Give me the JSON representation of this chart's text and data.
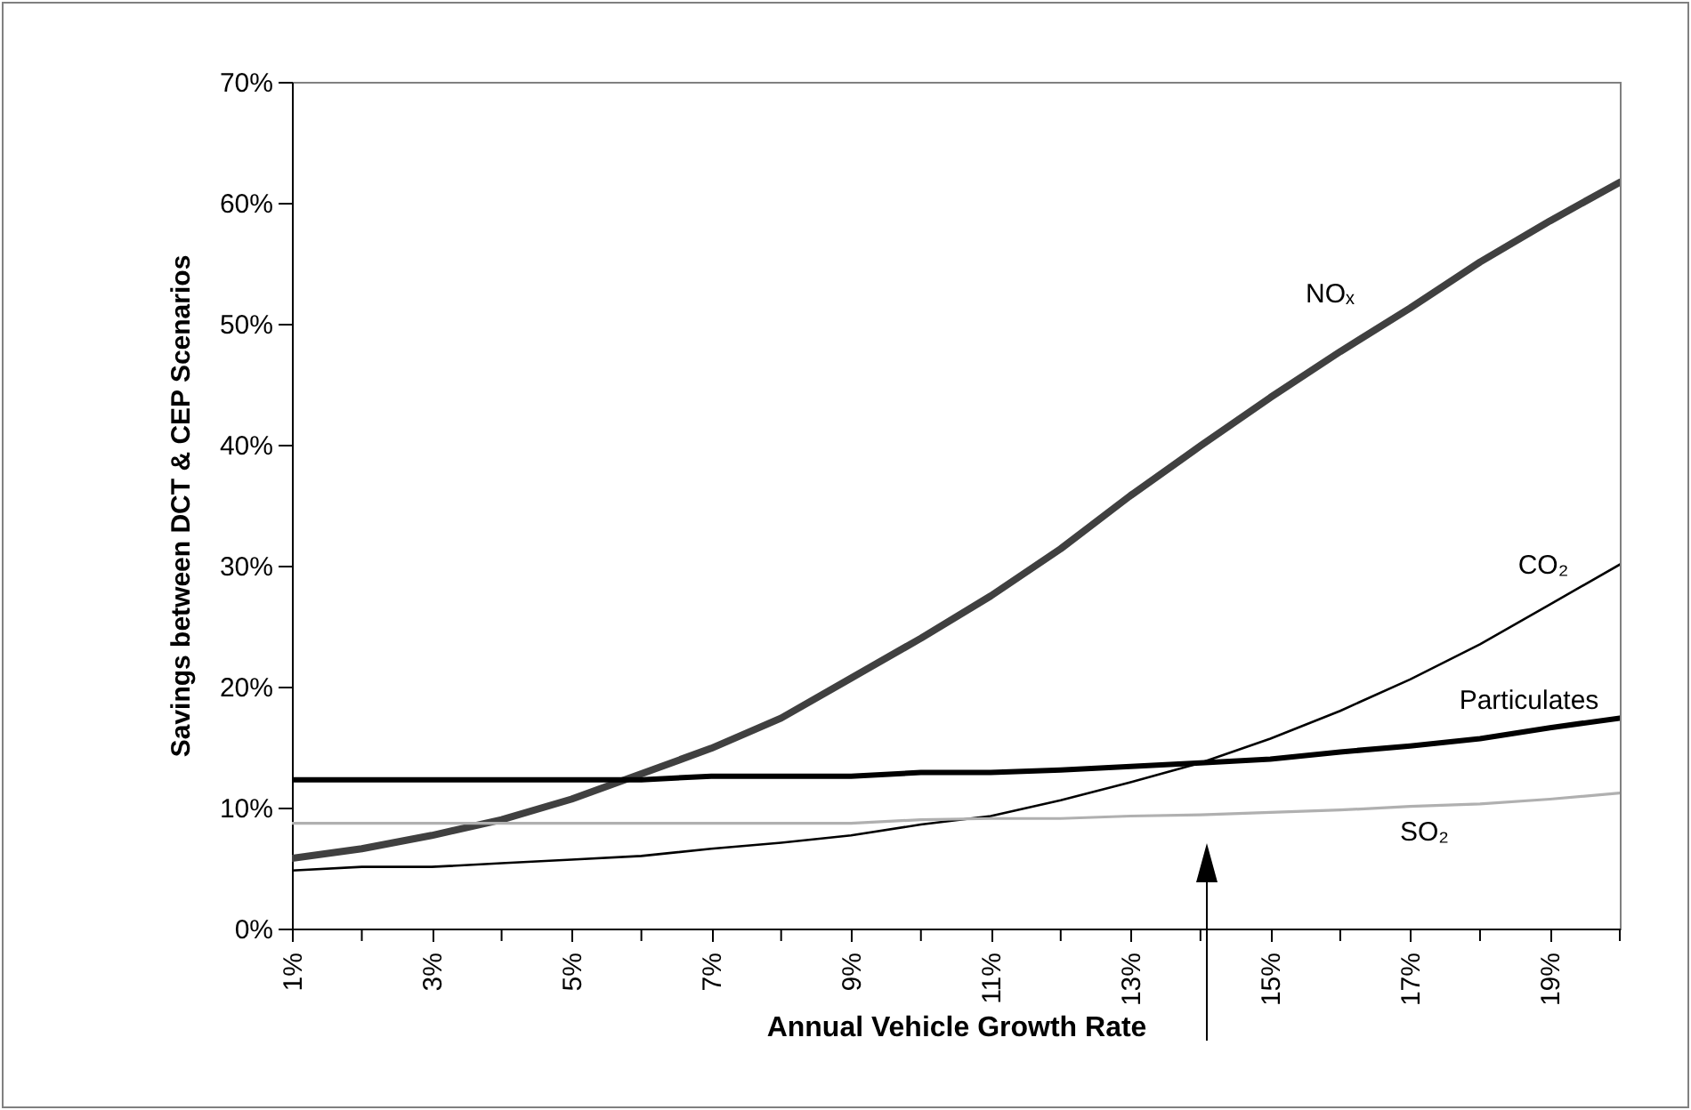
{
  "chart_data": {
    "type": "line",
    "xlabel": "Annual Vehicle Growth Rate",
    "ylabel": "Savings between DCT & CEP Scenarios",
    "x": [
      1,
      2,
      3,
      4,
      5,
      6,
      7,
      8,
      9,
      10,
      11,
      12,
      13,
      14,
      15,
      16,
      17,
      18,
      19,
      20
    ],
    "series": [
      {
        "name": "NOₓ",
        "color": "#404040",
        "values": [
          5.8,
          6.6,
          7.7,
          9.0,
          10.7,
          12.8,
          14.9,
          17.4,
          20.7,
          24.0,
          27.5,
          31.4,
          35.8,
          39.9,
          43.9,
          47.7,
          51.3,
          55.1,
          58.5,
          61.7
        ]
      },
      {
        "name": "CO₂",
        "color": "#000000",
        "values": [
          4.8,
          5.1,
          5.1,
          5.4,
          5.7,
          6.0,
          6.6,
          7.1,
          7.7,
          8.6,
          9.3,
          10.6,
          12.1,
          13.7,
          15.7,
          18.0,
          20.6,
          23.5,
          26.8,
          30.1
        ]
      },
      {
        "name": "Particulates",
        "color": "#000000",
        "values": [
          12.3,
          12.3,
          12.3,
          12.3,
          12.3,
          12.3,
          12.6,
          12.6,
          12.6,
          12.9,
          12.9,
          13.1,
          13.4,
          13.7,
          14.0,
          14.6,
          15.1,
          15.7,
          16.6,
          17.4
        ]
      },
      {
        "name": "SO₂",
        "color": "#b0b0b0",
        "values": [
          8.7,
          8.7,
          8.7,
          8.7,
          8.7,
          8.7,
          8.7,
          8.7,
          8.7,
          9.0,
          9.1,
          9.1,
          9.3,
          9.4,
          9.6,
          9.8,
          10.1,
          10.3,
          10.7,
          11.2
        ]
      }
    ],
    "xlim": [
      1,
      20
    ],
    "xticks": [
      {
        "value": 1,
        "label": "1%"
      },
      {
        "value": 2,
        "label": null
      },
      {
        "value": 3,
        "label": "3%"
      },
      {
        "value": 4,
        "label": null
      },
      {
        "value": 5,
        "label": "5%"
      },
      {
        "value": 6,
        "label": null
      },
      {
        "value": 7,
        "label": "7%"
      },
      {
        "value": 8,
        "label": null
      },
      {
        "value": 9,
        "label": "9%"
      },
      {
        "value": 10,
        "label": null
      },
      {
        "value": 11,
        "label": "11%"
      },
      {
        "value": 12,
        "label": null
      },
      {
        "value": 13,
        "label": "13%"
      },
      {
        "value": 14,
        "label": null
      },
      {
        "value": 15,
        "label": "15%"
      },
      {
        "value": 16,
        "label": null
      },
      {
        "value": 17,
        "label": "17%"
      },
      {
        "value": 18,
        "label": null
      },
      {
        "value": 19,
        "label": "19%"
      },
      {
        "value": 20,
        "label": null
      }
    ],
    "ylim": [
      0,
      70
    ],
    "yticks": [
      {
        "value": 0,
        "label": "0%"
      },
      {
        "value": 10,
        "label": "10%"
      },
      {
        "value": 20,
        "label": "20%"
      },
      {
        "value": 30,
        "label": "30%"
      },
      {
        "value": 40,
        "label": "40%"
      },
      {
        "value": 50,
        "label": "50%"
      },
      {
        "value": 60,
        "label": "60%"
      },
      {
        "value": 70,
        "label": "70%"
      }
    ],
    "grid": false,
    "legend": false,
    "marker": "none",
    "line_style": "solid"
  }
}
